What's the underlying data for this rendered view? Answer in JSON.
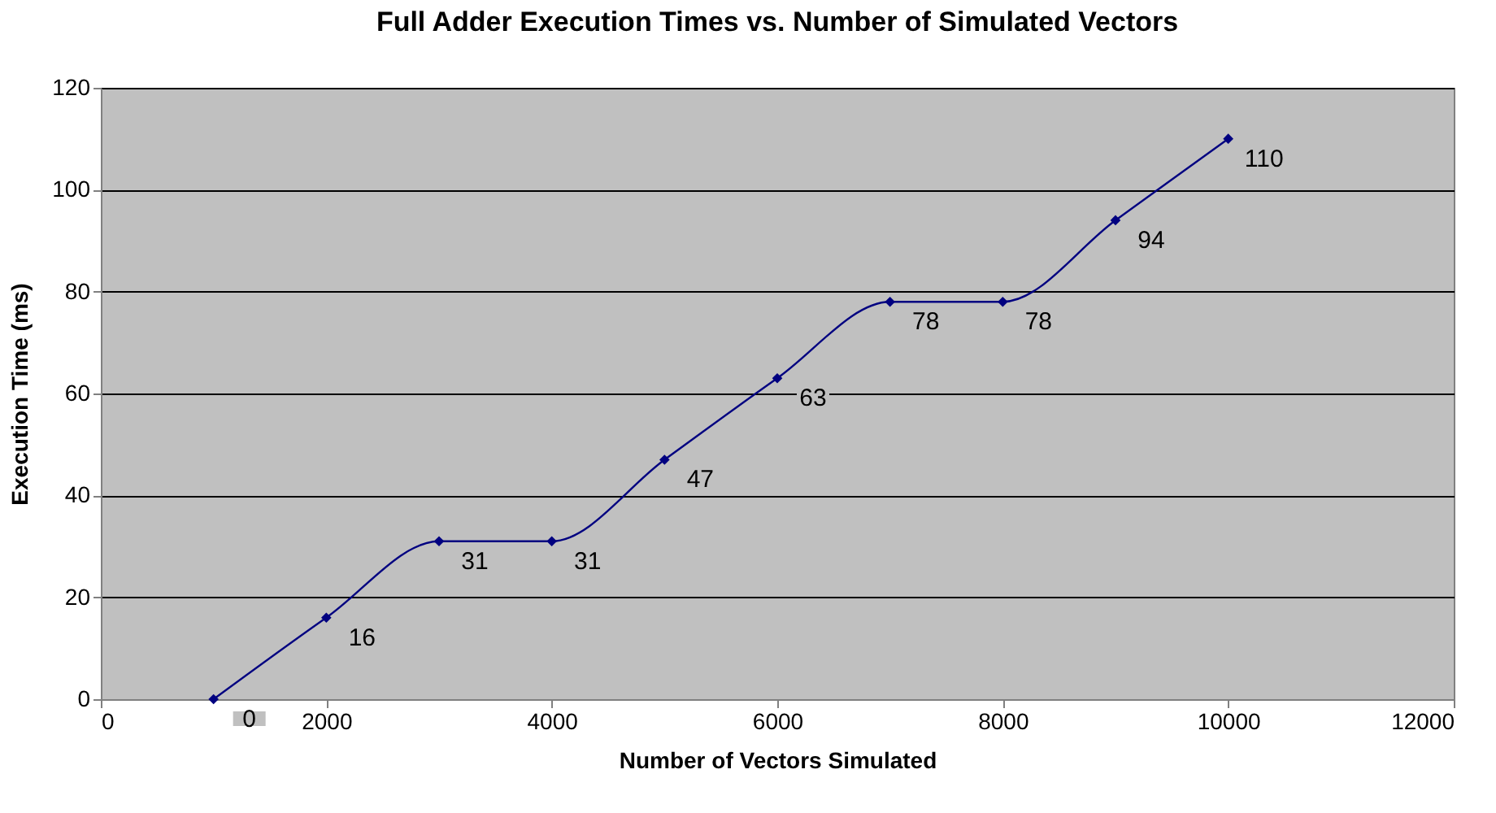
{
  "chart_data": {
    "type": "line",
    "title": "Full Adder Execution Times vs. Number of Simulated Vectors",
    "xlabel": "Number of Vectors Simulated",
    "ylabel": "Execution Time (ms)",
    "x": [
      1000,
      2000,
      3000,
      4000,
      5000,
      6000,
      7000,
      8000,
      9000,
      10000
    ],
    "series": [
      {
        "color": "#000080",
        "values": [
          0,
          16,
          31,
          31,
          47,
          63,
          78,
          78,
          94,
          110
        ]
      }
    ],
    "xlim": [
      0,
      12000
    ],
    "xticks": [
      0,
      2000,
      4000,
      6000,
      8000,
      10000,
      12000
    ],
    "ylim": [
      0,
      120
    ],
    "yticks": [
      0,
      20,
      40,
      60,
      80,
      100,
      120
    ],
    "grid": "y",
    "marker": "diamond",
    "line_style": "solid",
    "data_labels": true
  }
}
